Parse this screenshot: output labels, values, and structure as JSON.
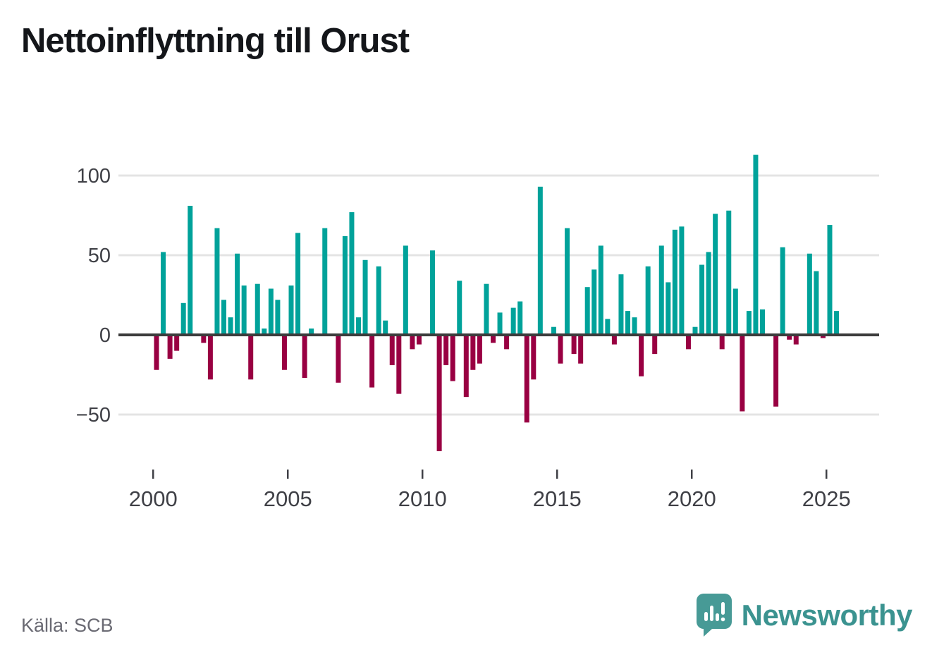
{
  "title": "Nettoinflyttning till Orust",
  "source_label": "Källa: SCB",
  "branding": {
    "wordmark": "Newsworthy",
    "logo_icon": "speech-bubble-bar-chart-icon"
  },
  "colors": {
    "bar_positive": "#00a29a",
    "bar_negative": "#990042",
    "zero_axis": "#3c3c3c",
    "gridline": "#e4e4e4",
    "tick_label": "#3f4046",
    "title_text": "#14161a",
    "source_text": "#6a6a73",
    "brand_teal": "#3b9390",
    "background": "#ffffff"
  },
  "chart_data": {
    "type": "bar",
    "title": "Nettoinflyttning till Orust",
    "frequency": "quarterly",
    "x_start": {
      "year": 2000,
      "quarter": 1
    },
    "values": [
      -22,
      52,
      -15,
      -10,
      20,
      81,
      0,
      -5,
      -28,
      67,
      22,
      11,
      51,
      31,
      -28,
      32,
      4,
      29,
      22,
      -22,
      31,
      64,
      -27,
      4,
      0,
      67,
      0,
      -30,
      62,
      77,
      11,
      47,
      -33,
      43,
      9,
      -19,
      -37,
      56,
      -9,
      -6,
      0,
      53,
      -73,
      -19,
      -29,
      34,
      -39,
      -22,
      -18,
      32,
      -5,
      14,
      -9,
      17,
      21,
      -55,
      -28,
      93,
      0,
      5,
      -18,
      67,
      -12,
      -18,
      30,
      41,
      56,
      10,
      -6,
      38,
      15,
      11,
      -26,
      43,
      -12,
      56,
      33,
      66,
      68,
      -9,
      5,
      44,
      52,
      76,
      -9,
      78,
      29,
      -48,
      15,
      113,
      16,
      0,
      -45,
      55,
      -3,
      -6,
      0,
      51,
      40,
      -2,
      69,
      15
    ],
    "x_tick_labels": [
      "2000",
      "2005",
      "2010",
      "2015",
      "2020",
      "2025"
    ],
    "y_ticks": [
      100,
      50,
      0,
      -50
    ],
    "y_tick_labels": [
      "100",
      "50",
      "0",
      "−50"
    ],
    "ylim": [
      -75,
      115
    ],
    "grid": true,
    "legend": false
  }
}
